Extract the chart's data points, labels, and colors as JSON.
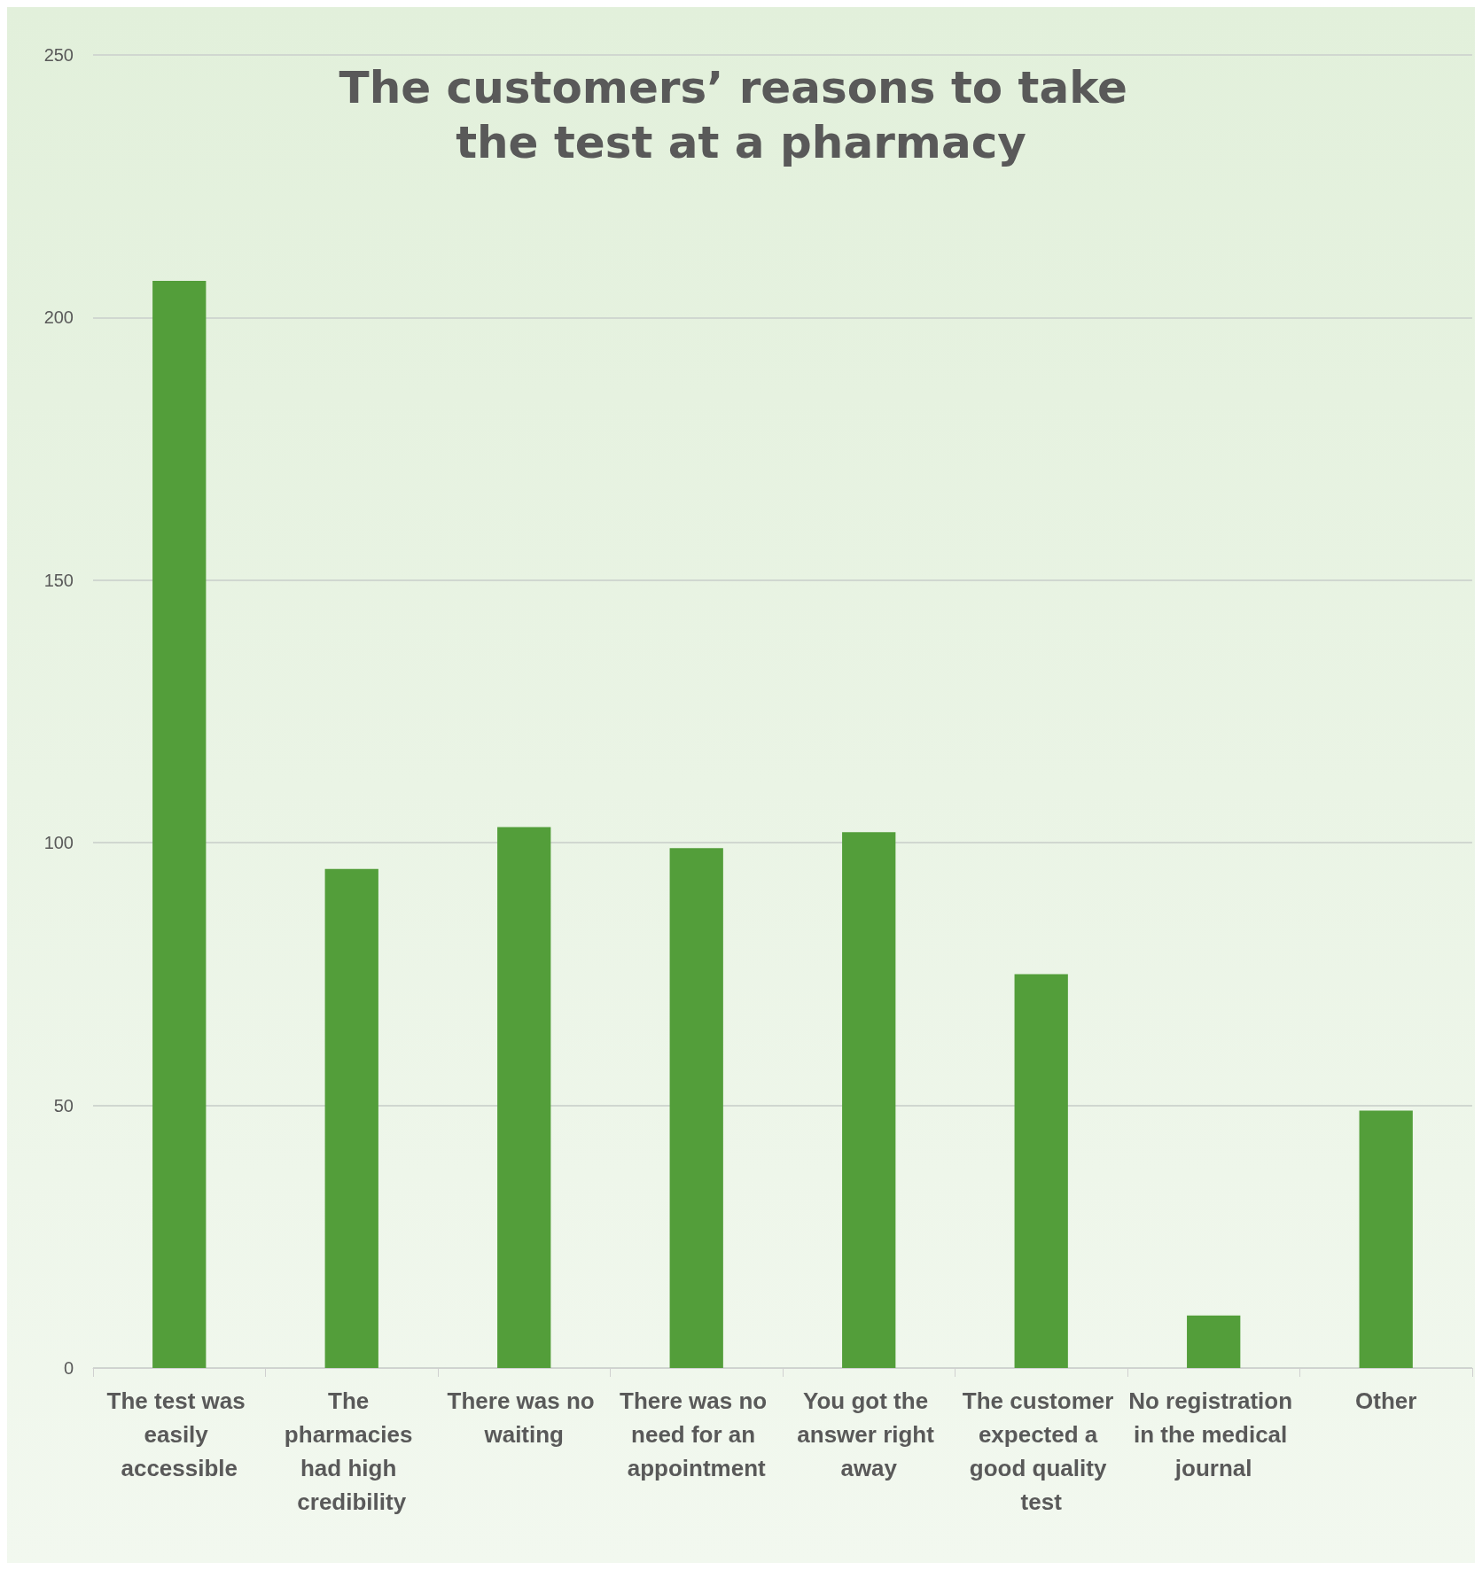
{
  "chart_data": {
    "type": "bar",
    "title": "The customers’ reasons to take the test at a pharmacy",
    "categories": [
      "The test was easily accessible",
      "The pharmacies had high credibility",
      "There was no waiting",
      "There was no need for an appointment",
      "You got the answer right away",
      "The customer expected a good quality test",
      "No registration in the medical journal",
      "Other"
    ],
    "values": [
      207,
      95,
      103,
      99,
      102,
      75,
      10,
      49
    ],
    "color": "#539e3a",
    "ylim": [
      0,
      250
    ],
    "yticks": [
      0,
      50,
      100,
      150,
      200,
      250
    ],
    "grid": "y"
  }
}
